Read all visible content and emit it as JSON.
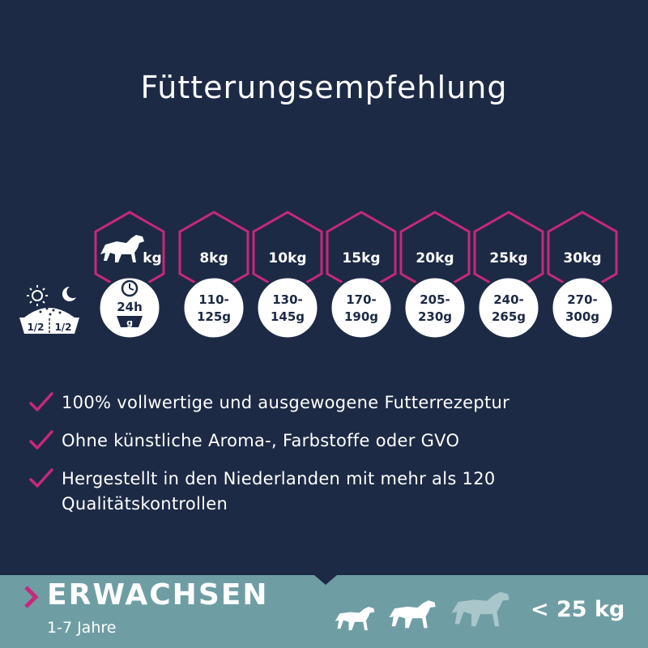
{
  "title": "Fütterungsempfehlung",
  "feeding": {
    "header_unit": "kg",
    "daily_icon_label": "24h",
    "bowl_label": "g",
    "split": {
      "day_label": "1/2",
      "night_label": "1/2"
    },
    "columns": [
      {
        "weight": "8kg",
        "amount_line1": "110-",
        "amount_line2": "125g"
      },
      {
        "weight": "10kg",
        "amount_line1": "130-",
        "amount_line2": "145g"
      },
      {
        "weight": "15kg",
        "amount_line1": "170-",
        "amount_line2": "190g"
      },
      {
        "weight": "20kg",
        "amount_line1": "205-",
        "amount_line2": "230g"
      },
      {
        "weight": "25kg",
        "amount_line1": "240-",
        "amount_line2": "265g"
      },
      {
        "weight": "30kg",
        "amount_line1": "270-",
        "amount_line2": "300g"
      }
    ]
  },
  "benefits": [
    "100% vollwertige und ausgewogene Futterrezeptur",
    "Ohne künstliche Aroma-, Farbstoffe oder GVO",
    "Hergestellt in den Niederlanden mit mehr als 120 Qualitätskontrollen"
  ],
  "band": {
    "title": "ERWACHSEN",
    "subtitle": "1-7 Jahre",
    "size": "< 25 kg"
  },
  "colors": {
    "background": "#1c2a45",
    "accent": "#c8287a",
    "band": "#6e9ea4",
    "white": "#ffffff"
  },
  "icons": [
    "sun-icon",
    "moon-icon",
    "food-bowl-icon",
    "dog-icon",
    "clock-icon",
    "check-icon",
    "chevron-right-icon"
  ]
}
